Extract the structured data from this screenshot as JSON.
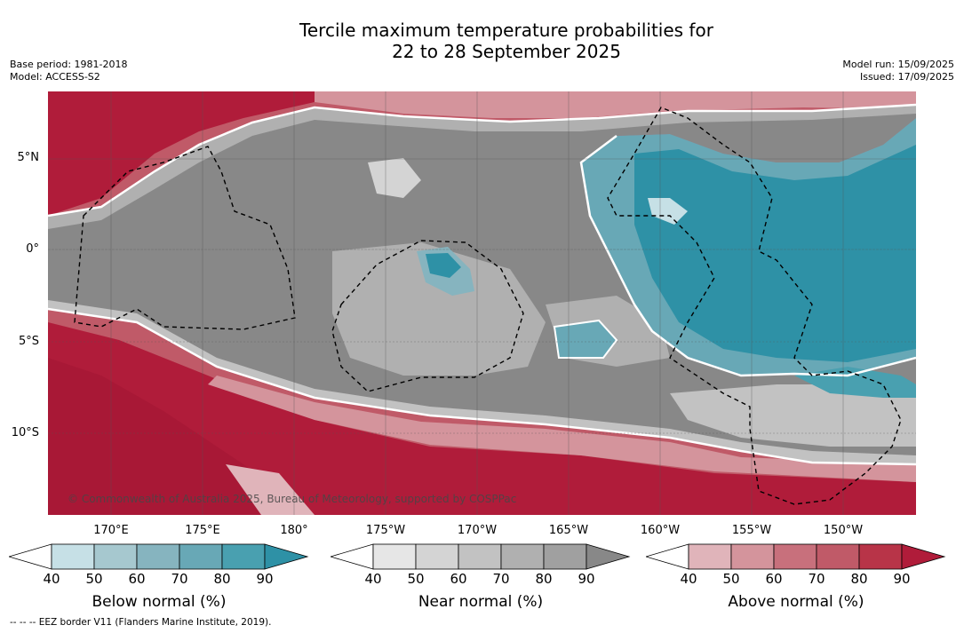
{
  "title_line1": "Tercile maximum temperature probabilities for",
  "title_line2": "22 to 28 September 2025",
  "base_period": "Base period: 1981-2018",
  "model": "Model: ACCESS-S2",
  "model_run": "Model run: 15/09/2025",
  "issued": "Issued: 17/09/2025",
  "lat_labels": [
    "5°N",
    "0°",
    "5°S",
    "10°S"
  ],
  "lon_labels": [
    "170°E",
    "175°E",
    "180°",
    "175°W",
    "170°W",
    "165°W",
    "160°W",
    "155°W",
    "150°W"
  ],
  "copyright": "© Commonwealth of Australia 2025, Bureau of Meteorology, supported by COSPPac",
  "colorbars": [
    {
      "title": "Below normal (%)",
      "ticks": [
        "40",
        "50",
        "60",
        "70",
        "80",
        "90"
      ],
      "colors": [
        "#ffffff",
        "#c6e0e6",
        "#a6c8cf",
        "#86b4bf",
        "#68a8b6",
        "#49a0b0",
        "#2e91a6"
      ]
    },
    {
      "title": "Near normal (%)",
      "ticks": [
        "40",
        "50",
        "60",
        "70",
        "80",
        "90"
      ],
      "colors": [
        "#ffffff",
        "#e6e6e6",
        "#d4d4d4",
        "#c2c2c2",
        "#b0b0b0",
        "#a0a0a0",
        "#888888"
      ]
    },
    {
      "title": "Above normal (%)",
      "ticks": [
        "40",
        "50",
        "60",
        "70",
        "80",
        "90"
      ],
      "colors": [
        "#ffffff",
        "#e0b4ba",
        "#d4949c",
        "#c8707c",
        "#c05a68",
        "#b83448",
        "#b01c3a"
      ]
    }
  ],
  "footer": "-- -- -- EEZ border V11 (Flanders Marine Institute, 2019)."
}
